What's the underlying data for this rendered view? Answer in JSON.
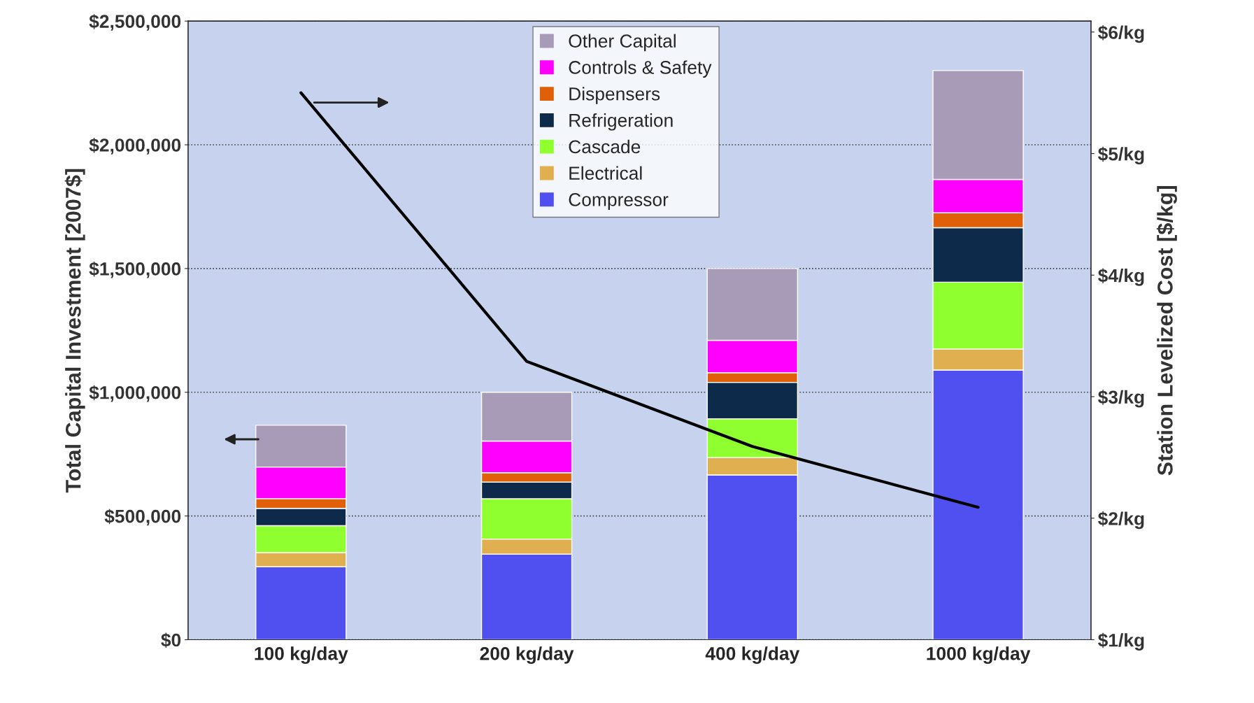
{
  "chart_data": {
    "type": "bar",
    "stacked": true,
    "categories": [
      "100 kg/day",
      "200 kg/day",
      "400 kg/day",
      "1000 kg/day"
    ],
    "ylabel": "Total Capital Investment [2007$]",
    "y2label": "Station Levelized Cost [$/kg]",
    "series": [
      {
        "name": "Compressor",
        "color": "#5050f0",
        "values": [
          295000,
          346000,
          666000,
          1090000
        ]
      },
      {
        "name": "Electrical",
        "color": "#e0b050",
        "values": [
          57000,
          61000,
          70000,
          85000
        ]
      },
      {
        "name": "Cascade",
        "color": "#90ff30",
        "values": [
          109000,
          163000,
          157000,
          270000
        ]
      },
      {
        "name": "Refrigeration",
        "color": "#0d2a4a",
        "values": [
          70000,
          67000,
          147000,
          220000
        ]
      },
      {
        "name": "Dispensers",
        "color": "#e0600a",
        "values": [
          39000,
          38000,
          39000,
          60000
        ]
      },
      {
        "name": "Controls & Safety",
        "color": "#ff00ff",
        "values": [
          128000,
          128000,
          131000,
          135000
        ]
      },
      {
        "name": "Other Capital",
        "color": "#a89bb8",
        "values": [
          169000,
          197000,
          290000,
          440000
        ]
      },
      {
        "type": "line",
        "axis": "y2",
        "color": "#000000",
        "marker": "none",
        "line_style": "solid",
        "values": [
          5.5,
          3.29,
          2.59,
          2.09
        ]
      }
    ],
    "ylim": [
      0,
      2500000
    ],
    "yticks": [
      {
        "value": 0,
        "label": "$0"
      },
      {
        "value": 500000,
        "label": "$500,000"
      },
      {
        "value": 1000000,
        "label": "$1,000,000"
      },
      {
        "value": 1500000,
        "label": "$1,500,000"
      },
      {
        "value": 2000000,
        "label": "$2,000,000"
      },
      {
        "value": 2500000,
        "label": "$2,500,000"
      }
    ],
    "y2lim": [
      1,
      6.09
    ],
    "y2ticks": [
      {
        "value": 1,
        "label": "$1/kg"
      },
      {
        "value": 2,
        "label": "$2/kg"
      },
      {
        "value": 3,
        "label": "$3/kg"
      },
      {
        "value": 4,
        "label": "$4/kg"
      },
      {
        "value": 5,
        "label": "$5/kg"
      },
      {
        "value": 6,
        "label": "$6/kg"
      }
    ],
    "grid": "y",
    "legend": "top"
  }
}
